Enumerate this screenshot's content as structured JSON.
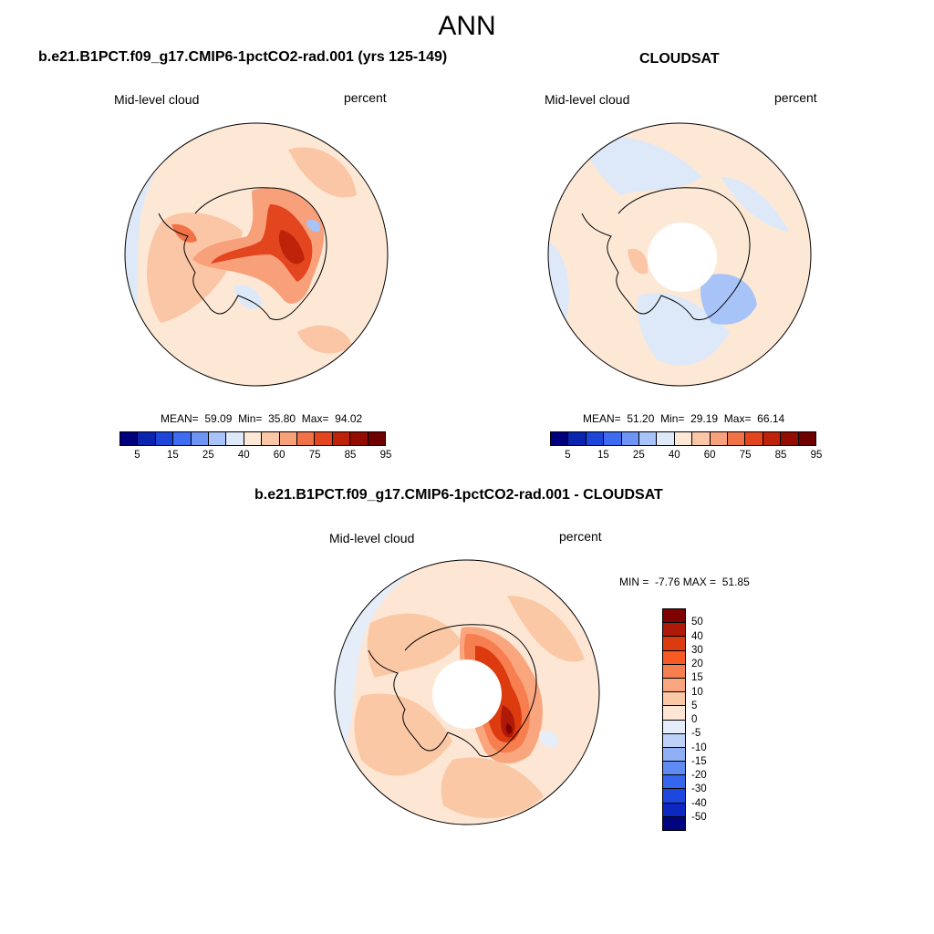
{
  "main_title": "ANN",
  "panels": [
    {
      "title": "b.e21.B1PCT.f09_g17.CMIP6-1pctCO2-rad.001 (yrs 125-149)",
      "variable": "Mid-level cloud",
      "units": "percent",
      "stats": {
        "mean_label": "MEAN=",
        "mean": "59.09",
        "min_label": "Min=",
        "min": "35.80",
        "max_label": "Max=",
        "max": "94.02"
      }
    },
    {
      "title": "CLOUDSAT",
      "variable": "Mid-level cloud",
      "units": "percent",
      "stats": {
        "mean_label": "MEAN=",
        "mean": "51.20",
        "min_label": "Min=",
        "min": "29.19",
        "max_label": "Max=",
        "max": "66.14"
      }
    },
    {
      "title": "b.e21.B1PCT.f09_g17.CMIP6-1pctCO2-rad.001 - CLOUDSAT",
      "variable": "Mid-level cloud",
      "units": "percent",
      "stats": {
        "min_label": "MIN =",
        "min": "-7.76",
        "max_label": "MAX =",
        "max": "51.85"
      }
    }
  ],
  "colorbar_abs": {
    "colors": [
      "#00007f",
      "#0a24b0",
      "#1e45da",
      "#3d6cf0",
      "#6e95f5",
      "#a7c3f8",
      "#dde9f9",
      "#fde8d6",
      "#fbc6a6",
      "#f7a07a",
      "#f27248",
      "#e3451e",
      "#be2209",
      "#930c02",
      "#700000"
    ],
    "tick_labels": [
      "5",
      "15",
      "25",
      "40",
      "60",
      "75",
      "85",
      "95"
    ]
  },
  "colorbar_diff": {
    "colors": [
      "#800000",
      "#ae1a07",
      "#dc3a0f",
      "#f75a22",
      "#f77e4f",
      "#f9a67e",
      "#fbc8a6",
      "#fde6d3",
      "#e4edf8",
      "#bed2f7",
      "#90b0f5",
      "#5f8bf2",
      "#3466ee",
      "#1c48e0",
      "#0d28c2",
      "#00057f"
    ],
    "tick_labels": [
      "50",
      "40",
      "30",
      "20",
      "15",
      "10",
      "5",
      "0",
      "-5",
      "-10",
      "-15",
      "-20",
      "-30",
      "-40",
      "-50"
    ]
  }
}
